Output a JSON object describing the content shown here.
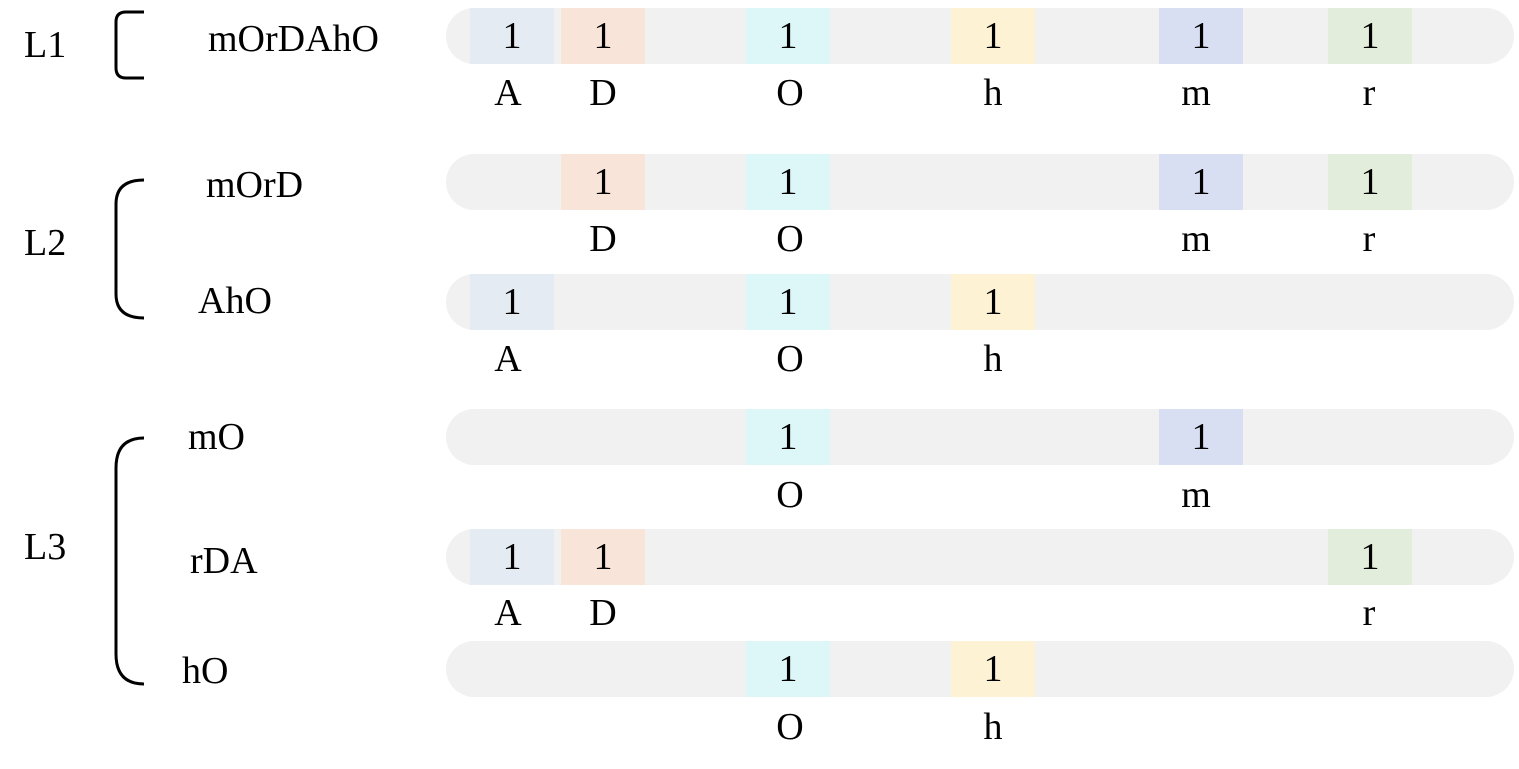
{
  "columns": [
    {
      "key": "A",
      "letter": "A",
      "color": "#e4ebf2"
    },
    {
      "key": "D",
      "letter": "D",
      "color": "#f8e4d9"
    },
    {
      "key": "O",
      "letter": "O",
      "color": "#ddf6f8"
    },
    {
      "key": "h",
      "letter": "h",
      "color": "#fdf2d3"
    },
    {
      "key": "m",
      "letter": "m",
      "color": "#d8dff2"
    },
    {
      "key": "r",
      "letter": "r",
      "color": "#e2eedb"
    }
  ],
  "levels": [
    {
      "label": "L1",
      "rows": [
        {
          "word": "mOrDAhO",
          "cells": [
            "A",
            "D",
            "O",
            "h",
            "m",
            "r"
          ],
          "value": "1"
        }
      ]
    },
    {
      "label": "L2",
      "rows": [
        {
          "word": "mOrD",
          "cells": [
            "D",
            "O",
            "m",
            "r"
          ],
          "value": "1"
        },
        {
          "word": "AhO",
          "cells": [
            "A",
            "O",
            "h"
          ],
          "value": "1"
        }
      ]
    },
    {
      "label": "L3",
      "rows": [
        {
          "word": "mO",
          "cells": [
            "O",
            "m"
          ],
          "value": "1"
        },
        {
          "word": "rDA",
          "cells": [
            "A",
            "D",
            "r"
          ],
          "value": "1"
        },
        {
          "word": "hO",
          "cells": [
            "O",
            "h"
          ],
          "value": "1"
        }
      ]
    }
  ]
}
